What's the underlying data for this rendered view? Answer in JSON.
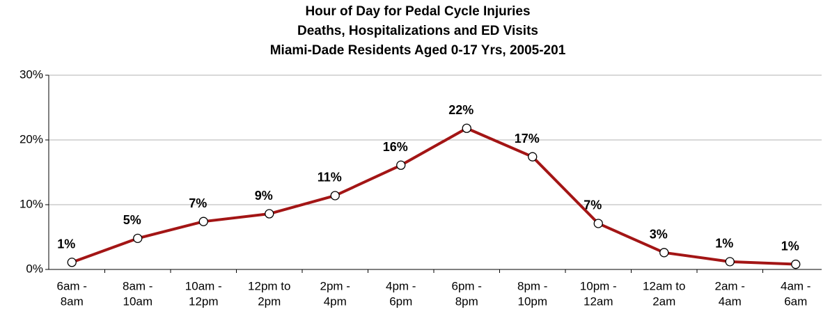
{
  "chart_data": {
    "type": "line",
    "title": "Hour of Day for Pedal Cycle Injuries",
    "subtitle": [
      "Deaths, Hospitalizations and ED Visits",
      "Miami-Dade Residents Aged 0-17 Yrs, 2005-201"
    ],
    "categories": [
      [
        "6am -",
        "8am"
      ],
      [
        "8am -",
        "10am"
      ],
      [
        "10am -",
        "12pm"
      ],
      [
        "12pm to",
        "2pm"
      ],
      [
        "2pm -",
        "4pm"
      ],
      [
        "4pm -",
        "6pm"
      ],
      [
        "6pm -",
        "8pm"
      ],
      [
        "8pm -",
        "10pm"
      ],
      [
        "10pm -",
        "12am"
      ],
      [
        "12am to",
        "2am"
      ],
      [
        "2am -",
        "4am"
      ],
      [
        "4am -",
        "6am"
      ]
    ],
    "values": [
      1.1,
      4.8,
      7.4,
      8.6,
      11.4,
      16.1,
      21.8,
      17.4,
      7.1,
      2.6,
      1.2,
      0.8
    ],
    "value_labels": [
      "1%",
      "5%",
      "7%",
      "9%",
      "11%",
      "16%",
      "22%",
      "17%",
      "7%",
      "3%",
      "1%",
      "1%"
    ],
    "color": "#a31515",
    "ylim": [
      0,
      30
    ],
    "yticks": [
      {
        "value": 0,
        "label": "0%"
      },
      {
        "value": 10,
        "label": "10%"
      },
      {
        "value": 20,
        "label": "20%"
      },
      {
        "value": 30,
        "label": "30%"
      }
    ],
    "grid": true
  }
}
